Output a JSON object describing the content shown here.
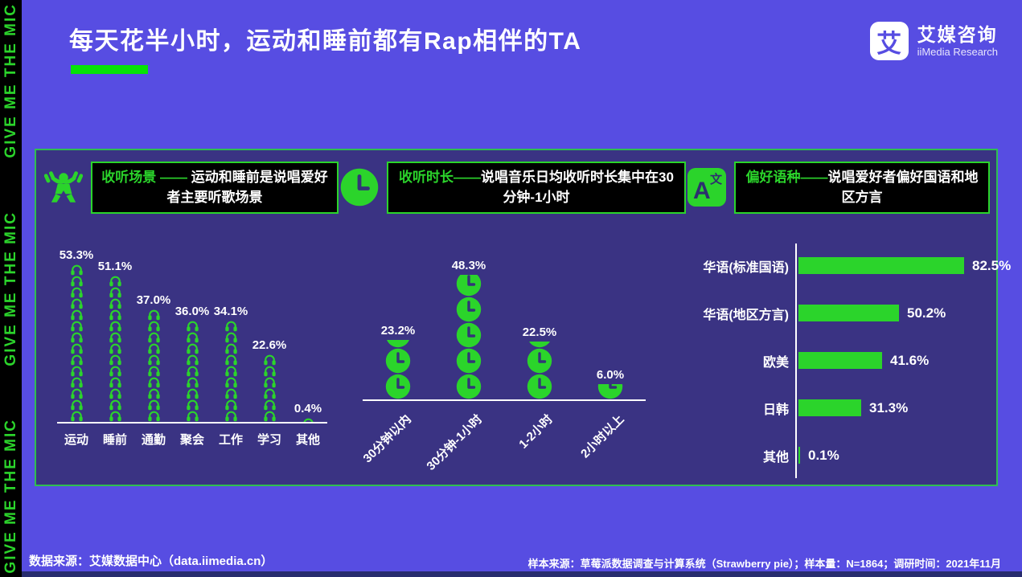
{
  "page": {
    "title": "每天花半小时，运动和睡前都有Rap相伴的TA",
    "sidebar_text": "GIVE ME THE MIC",
    "logo": {
      "glyph": "艾",
      "name_cn": "艾媒咨询",
      "name_en": "iiMedia Research"
    },
    "footer_left": "数据来源：艾媒数据中心（data.iimedia.cn）",
    "footer_right": "样本来源：草莓派数据调查与计算系统（Strawberry pie）；样本量：N=1864；调研时间：2021年11月",
    "colors": {
      "background": "#574de2",
      "panel": "#3a3383",
      "accent_green": "#2bd42b",
      "panel_border_green": "#2fbf4f",
      "title_underline_green": "#06e206",
      "header_box_black": "#000000",
      "text_white": "#ffffff"
    }
  },
  "chart_data": [
    {
      "type": "bar",
      "id": "scene",
      "pictogram": "headphones-icon",
      "header_icon": "weightlifter-icon",
      "title_highlight": "收听场景 —— ",
      "title_rest": "运动和睡前是说唱爱好者主要听歌场景",
      "categories": [
        "运动",
        "睡前",
        "通勤",
        "聚会",
        "工作",
        "学习",
        "其他"
      ],
      "values": [
        53.3,
        51.1,
        37.0,
        36.0,
        34.1,
        22.6,
        0.4
      ],
      "unit": "%",
      "icon_unit_percent": 3.8,
      "legend": "none",
      "grid": false
    },
    {
      "type": "bar",
      "id": "duration",
      "pictogram": "clock-icon",
      "header_icon": "clock-icon",
      "title_highlight": "收听时长——",
      "title_rest": "说唱音乐日均收听时长集中在30分钟-1小时",
      "categories": [
        "30分钟以内",
        "30分钟-1小时",
        "1-2小时",
        "2小时以上"
      ],
      "values": [
        23.2,
        48.3,
        22.5,
        6.0
      ],
      "unit": "%",
      "icon_unit_percent": 10,
      "legend": "none",
      "grid": false
    },
    {
      "type": "bar",
      "id": "language",
      "orientation": "horizontal",
      "header_icon": "translate-icon",
      "title_highlight": "偏好语种——",
      "title_rest": "说唱爱好者偏好国语和地区方言",
      "categories": [
        "华语(标准国语)",
        "华语(地区方言)",
        "欧美",
        "日韩",
        "其他"
      ],
      "values": [
        82.5,
        50.2,
        41.6,
        31.3,
        0.1
      ],
      "unit": "%",
      "xlim": [
        0,
        85
      ],
      "legend": "none",
      "grid": false
    }
  ]
}
